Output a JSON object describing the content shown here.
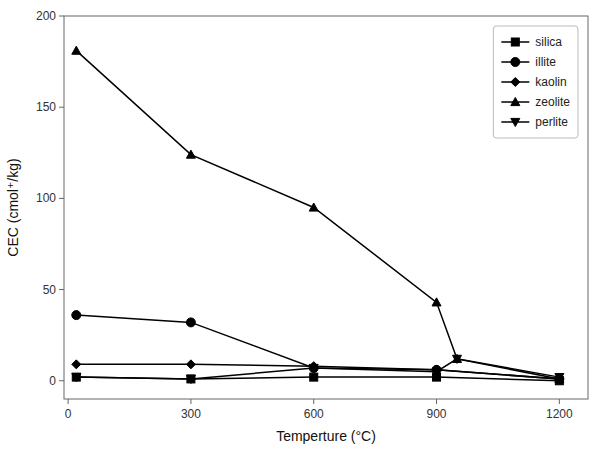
{
  "chart_data": {
    "type": "line",
    "x_label": "Temperture (°C)",
    "y_label": "CEC (cmol⁺/kg)",
    "series": [
      {
        "name": "silica",
        "color": "#000000",
        "marker": "square",
        "x": [
          20,
          300,
          600,
          900,
          1200
        ],
        "values": [
          2,
          1,
          2,
          2,
          0
        ]
      },
      {
        "name": "illite",
        "color": "#000000",
        "marker": "circle",
        "x": [
          20,
          300,
          600,
          900,
          1200
        ],
        "values": [
          36,
          32,
          7,
          6,
          1
        ]
      },
      {
        "name": "kaolin",
        "color": "#000000",
        "marker": "diamond",
        "x": [
          20,
          300,
          600,
          900,
          1200
        ],
        "values": [
          9,
          9,
          8,
          6,
          1
        ]
      },
      {
        "name": "zeolite",
        "color": "#000000",
        "marker": "triangle-up",
        "x": [
          20,
          300,
          600,
          900,
          950,
          1200
        ],
        "values": [
          181,
          124,
          95,
          43,
          12,
          1
        ]
      },
      {
        "name": "perlite",
        "color": "#000000",
        "marker": "triangle-down",
        "x": [
          20,
          300,
          600,
          900,
          950,
          1200
        ],
        "values": [
          2,
          1,
          7,
          5,
          12,
          2
        ]
      }
    ],
    "xlim": [
      -10,
      1270
    ],
    "ylim": [
      -10,
      200
    ],
    "xticks": [
      0,
      300,
      600,
      900,
      1200
    ],
    "yticks": [
      0,
      50,
      100,
      150,
      200
    ],
    "legend": "upper right",
    "grid": false
  }
}
